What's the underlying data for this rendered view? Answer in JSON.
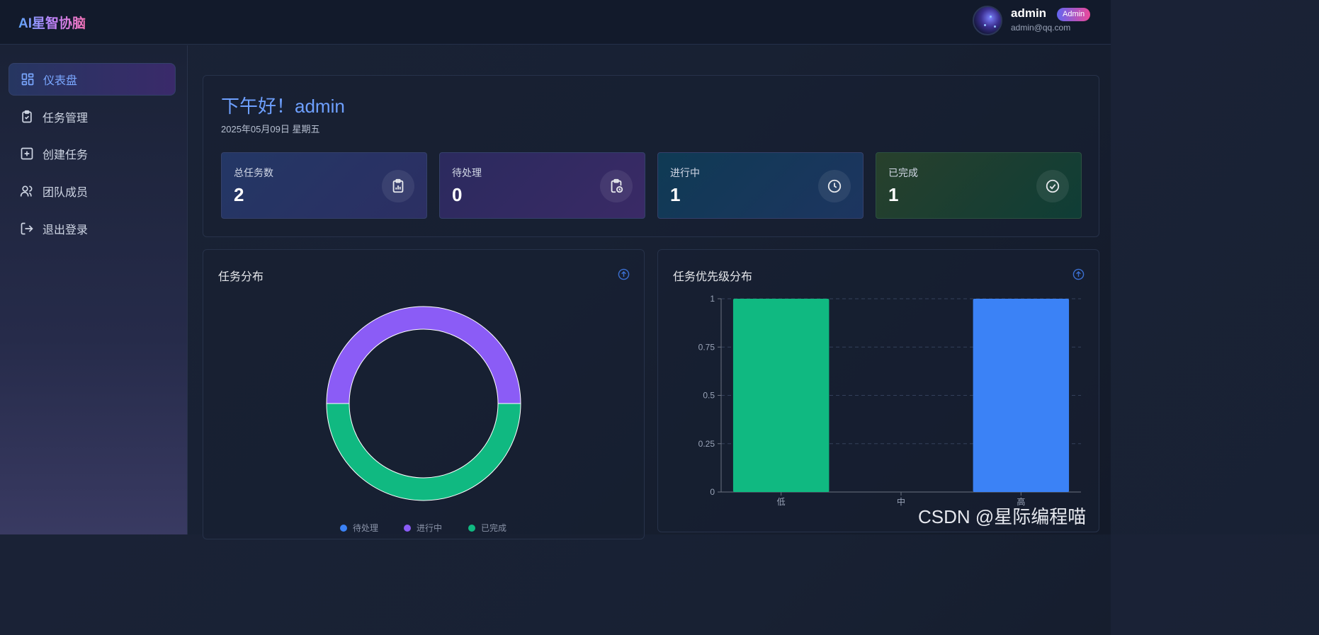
{
  "app": {
    "title": "AI星智协脑"
  },
  "user": {
    "name": "admin",
    "role_badge": "Admin",
    "email": "admin@qq.com"
  },
  "sidebar": {
    "items": [
      {
        "label": "仪表盘",
        "icon": "dashboard-icon",
        "active": true
      },
      {
        "label": "任务管理",
        "icon": "clipboard-icon",
        "active": false
      },
      {
        "label": "创建任务",
        "icon": "plus-square-icon",
        "active": false
      },
      {
        "label": "团队成员",
        "icon": "users-icon",
        "active": false
      },
      {
        "label": "退出登录",
        "icon": "logout-icon",
        "active": false
      }
    ]
  },
  "welcome": {
    "greeting": "下午好！admin",
    "date": "2025年05月09日 星期五"
  },
  "stats": [
    {
      "label": "总任务数",
      "value": "2",
      "icon": "clipboard-chart-icon"
    },
    {
      "label": "待处理",
      "value": "0",
      "icon": "clipboard-clock-icon"
    },
    {
      "label": "进行中",
      "value": "1",
      "icon": "clock-icon"
    },
    {
      "label": "已完成",
      "value": "1",
      "icon": "check-circle-icon"
    }
  ],
  "colors": {
    "pending": "#3b82f6",
    "in_progress": "#8b5cf6",
    "completed": "#10b981",
    "accent": "#6ea0ff"
  },
  "task_distribution": {
    "title": "任务分布",
    "chart_data": {
      "type": "pie",
      "categories": [
        "待处理",
        "进行中",
        "已完成"
      ],
      "values": [
        0,
        1,
        1
      ],
      "colors": [
        "#3b82f6",
        "#8b5cf6",
        "#10b981"
      ],
      "legend": "bottom"
    }
  },
  "priority_distribution": {
    "title": "任务优先级分布",
    "chart_data": {
      "type": "bar",
      "categories": [
        "低",
        "中",
        "高"
      ],
      "values": [
        1,
        0,
        1
      ],
      "colors": [
        "#10b981",
        "#f59e0b",
        "#3b82f6"
      ],
      "ylim": [
        0,
        1
      ],
      "yticks": [
        "0",
        "0.25",
        "0.5",
        "0.75",
        "1"
      ],
      "grid": true
    }
  },
  "watermark": "CSDN @星际编程喵"
}
